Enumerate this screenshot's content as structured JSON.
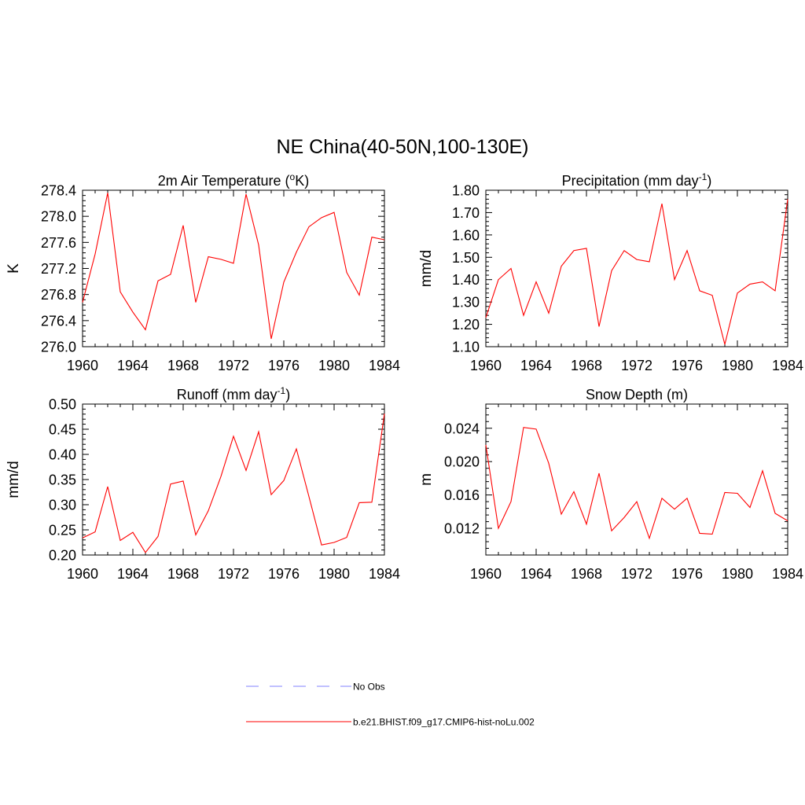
{
  "title": "NE China(40-50N,100-130E)",
  "colors": {
    "model": "#ff0000",
    "obs": "#9c9cff"
  },
  "legend": {
    "placement": "bottom-center",
    "entries": [
      {
        "label": "No Obs",
        "style": "dashed",
        "color": "#9c9cff"
      },
      {
        "label": "b.e21.BHIST.f09_g17.CMIP6-hist-noLu.002",
        "style": "solid",
        "color": "#ff0000"
      }
    ]
  },
  "chart_data": [
    {
      "type": "line",
      "title": "2m Air Temperature (",
      "title_sup": "o",
      "title_tail": "K)",
      "ylabel": "K",
      "xlim": [
        1960,
        1984
      ],
      "ylim": [
        276.0,
        278.4
      ],
      "xticks": [
        "1960",
        "1964",
        "1968",
        "1972",
        "1976",
        "1980",
        "1984"
      ],
      "yticks": [
        "276.0",
        "276.4",
        "276.8",
        "277.2",
        "277.6",
        "278.0",
        "278.4"
      ],
      "x": [
        1960,
        1961,
        1962,
        1963,
        1964,
        1965,
        1966,
        1967,
        1968,
        1969,
        1970,
        1971,
        1972,
        1973,
        1974,
        1975,
        1976,
        1977,
        1978,
        1979,
        1980,
        1981,
        1982,
        1983,
        1984
      ],
      "series": [
        {
          "name": "b.e21.BHIST.f09_g17.CMIP6-hist-noLu.002",
          "values": [
            276.68,
            277.42,
            278.36,
            276.84,
            276.53,
            276.26,
            277.01,
            277.11,
            277.86,
            276.68,
            277.38,
            277.34,
            277.28,
            278.34,
            277.56,
            276.12,
            276.99,
            277.45,
            277.84,
            277.98,
            278.06,
            277.14,
            276.79,
            277.68,
            277.64
          ]
        }
      ]
    },
    {
      "type": "line",
      "title": "Precipitation (mm day",
      "title_sup": "-1",
      "title_tail": ")",
      "ylabel": "mm/d",
      "xlim": [
        1960,
        1984
      ],
      "ylim": [
        1.1,
        1.8
      ],
      "xticks": [
        "1960",
        "1964",
        "1968",
        "1972",
        "1976",
        "1980",
        "1984"
      ],
      "yticks": [
        "1.10",
        "1.20",
        "1.30",
        "1.40",
        "1.50",
        "1.60",
        "1.70",
        "1.80"
      ],
      "x": [
        1960,
        1961,
        1962,
        1963,
        1964,
        1965,
        1966,
        1967,
        1968,
        1969,
        1970,
        1971,
        1972,
        1973,
        1974,
        1975,
        1976,
        1977,
        1978,
        1979,
        1980,
        1981,
        1982,
        1983,
        1984
      ],
      "series": [
        {
          "name": "b.e21.BHIST.f09_g17.CMIP6-hist-noLu.002",
          "values": [
            1.23,
            1.4,
            1.45,
            1.24,
            1.39,
            1.25,
            1.46,
            1.53,
            1.54,
            1.19,
            1.44,
            1.53,
            1.49,
            1.48,
            1.74,
            1.4,
            1.53,
            1.35,
            1.33,
            1.11,
            1.34,
            1.38,
            1.39,
            1.35,
            1.76
          ]
        }
      ]
    },
    {
      "type": "line",
      "title": "Runoff (mm day",
      "title_sup": "-1",
      "title_tail": ")",
      "ylabel": "mm/d",
      "xlim": [
        1960,
        1984
      ],
      "ylim": [
        0.2,
        0.5
      ],
      "xticks": [
        "1960",
        "1964",
        "1968",
        "1972",
        "1976",
        "1980",
        "1984"
      ],
      "yticks": [
        "0.20",
        "0.25",
        "0.30",
        "0.35",
        "0.40",
        "0.45",
        "0.50"
      ],
      "x": [
        1960,
        1961,
        1962,
        1963,
        1964,
        1965,
        1966,
        1967,
        1968,
        1969,
        1970,
        1971,
        1972,
        1973,
        1974,
        1975,
        1976,
        1977,
        1978,
        1979,
        1980,
        1981,
        1982,
        1983,
        1984
      ],
      "series": [
        {
          "name": "b.e21.BHIST.f09_g17.CMIP6-hist-noLu.002",
          "values": [
            0.234,
            0.246,
            0.336,
            0.229,
            0.245,
            0.205,
            0.237,
            0.341,
            0.347,
            0.24,
            0.288,
            0.356,
            0.436,
            0.368,
            0.445,
            0.32,
            0.348,
            0.411,
            0.316,
            0.22,
            0.225,
            0.235,
            0.304,
            0.305,
            0.481
          ]
        }
      ]
    },
    {
      "type": "line",
      "title": "Snow Depth (m)",
      "title_sup": "",
      "title_tail": "",
      "ylabel": "m",
      "xlim": [
        1960,
        1984
      ],
      "ylim": [
        0.0088,
        0.0269
      ],
      "xticks": [
        "1960",
        "1964",
        "1968",
        "1972",
        "1976",
        "1980",
        "1984"
      ],
      "yticks": [
        "0.012",
        "0.016",
        "0.020",
        "0.024"
      ],
      "ytickvals": [
        0.012,
        0.016,
        0.02,
        0.024
      ],
      "x": [
        1960,
        1961,
        1962,
        1963,
        1964,
        1965,
        1966,
        1967,
        1968,
        1969,
        1970,
        1971,
        1972,
        1973,
        1974,
        1975,
        1976,
        1977,
        1978,
        1979,
        1980,
        1981,
        1982,
        1983,
        1984
      ],
      "series": [
        {
          "name": "b.e21.BHIST.f09_g17.CMIP6-hist-noLu.002",
          "values": [
            0.022,
            0.012,
            0.0152,
            0.0241,
            0.0239,
            0.0198,
            0.0137,
            0.0164,
            0.0125,
            0.0186,
            0.0117,
            0.0133,
            0.0152,
            0.0108,
            0.0156,
            0.0143,
            0.0156,
            0.0114,
            0.0113,
            0.0163,
            0.0162,
            0.0145,
            0.0189,
            0.0138,
            0.0129
          ]
        }
      ]
    }
  ]
}
